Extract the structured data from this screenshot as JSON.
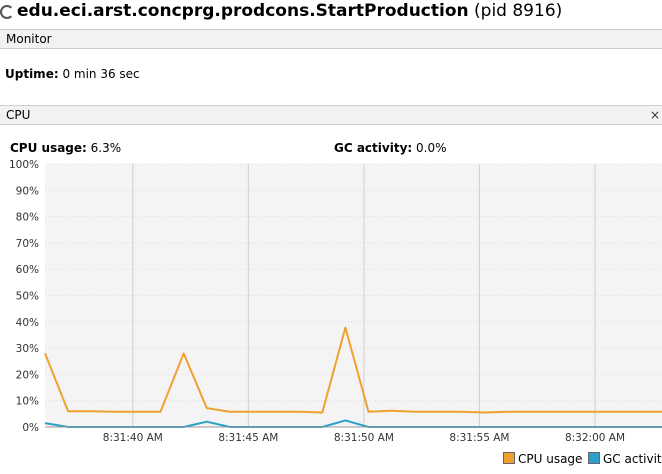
{
  "window": {
    "title_bold": "edu.eci.arst.concprg.prodcons.StartProduction",
    "title_rest": " (pid 8916)"
  },
  "monitor": {
    "section_label": "Monitor",
    "uptime_label": "Uptime:",
    "uptime_value": " 0 min 36 sec"
  },
  "cpu": {
    "section_label": "CPU",
    "collapse_icon": "×",
    "cpu_usage_label": "CPU usage:",
    "cpu_usage_value": " 6.3%",
    "gc_activity_label": "GC activity:",
    "gc_activity_value": " 0.0%"
  },
  "colors": {
    "cpu_usage": "#f0a030",
    "gc_activity": "#2ba0c8"
  },
  "chart_data": {
    "type": "line",
    "title": "",
    "xlabel": "",
    "ylabel": "",
    "ylim": [
      0,
      100
    ],
    "y_ticks": [
      "0%",
      "10%",
      "20%",
      "30%",
      "40%",
      "50%",
      "60%",
      "70%",
      "80%",
      "90%",
      "100%"
    ],
    "x_ticks": [
      "8:31:40 AM",
      "8:31:45 AM",
      "8:31:50 AM",
      "8:31:55 AM",
      "8:32:00 AM"
    ],
    "x_tick_seconds": [
      40,
      45,
      50,
      55,
      60
    ],
    "x_range_seconds": [
      36.2,
      62.9
    ],
    "grid": true,
    "legend_position": "bottom-right",
    "series": [
      {
        "name": "CPU usage",
        "color": "#f0a030",
        "x_seconds": [
          36.2,
          37.2,
          38.2,
          39.2,
          40.2,
          41.2,
          42.2,
          43.2,
          44.2,
          45.2,
          46.2,
          47.2,
          48.2,
          49.2,
          50.2,
          51.2,
          52.2,
          53.2,
          54.2,
          55.2,
          56.2,
          57.2,
          58.2,
          59.2,
          60.2,
          61.2,
          62.2,
          62.9
        ],
        "values": [
          28,
          6,
          6,
          5.8,
          5.8,
          5.8,
          28,
          7.2,
          5.8,
          5.8,
          5.8,
          5.8,
          5.5,
          37.8,
          5.8,
          6.2,
          5.8,
          5.8,
          5.8,
          5.5,
          5.8,
          5.8,
          5.8,
          5.8,
          5.8,
          5.8,
          5.8,
          5.8
        ]
      },
      {
        "name": "GC activity",
        "color": "#2ba0c8",
        "x_seconds": [
          36.2,
          37.2,
          38.2,
          42.2,
          43.2,
          44.2,
          48.2,
          49.2,
          50.2,
          62.9
        ],
        "values": [
          1.5,
          0,
          0,
          0,
          2,
          0,
          0,
          2.5,
          0,
          0
        ]
      }
    ]
  }
}
